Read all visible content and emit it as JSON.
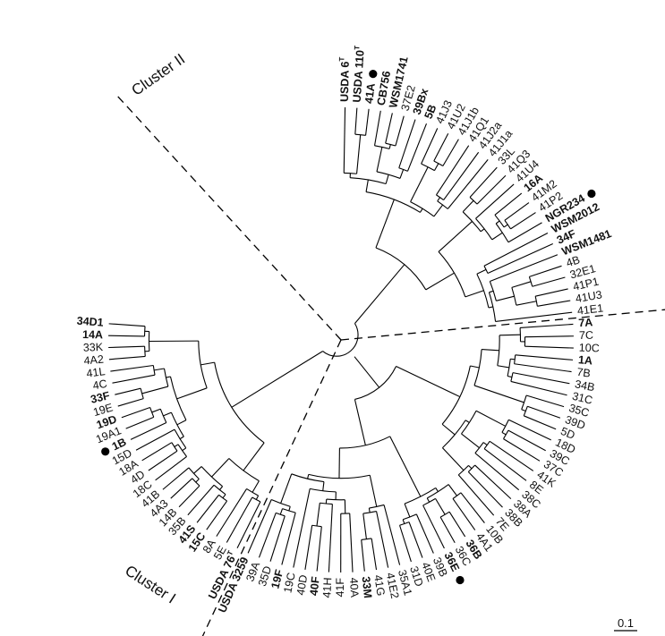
{
  "clusters": [
    {
      "id": "I",
      "label": "Cluster I"
    },
    {
      "id": "II",
      "label": "Cluster II"
    }
  ],
  "scale_bar": {
    "label": "0.1",
    "length": 0.1
  },
  "leaves": [
    {
      "name": "USDA 6",
      "sup": "T",
      "bold": true
    },
    {
      "name": "USDA 110",
      "sup": "T",
      "bold": true
    },
    {
      "name": "41A",
      "bold": true,
      "marker": true
    },
    {
      "name": "CB756",
      "bold": true
    },
    {
      "name": "WSM1741",
      "bold": true
    },
    {
      "name": "37E2"
    },
    {
      "name": "39Bx",
      "bold": true
    },
    {
      "name": "5B",
      "bold": true
    },
    {
      "name": "41J3"
    },
    {
      "name": "41U2"
    },
    {
      "name": "41J1b"
    },
    {
      "name": "41Q1"
    },
    {
      "name": "41J2a"
    },
    {
      "name": "41J1a"
    },
    {
      "name": "33L"
    },
    {
      "name": "41Q3"
    },
    {
      "name": "41U4"
    },
    {
      "name": "16A",
      "bold": true
    },
    {
      "name": "41M2"
    },
    {
      "name": "41P2"
    },
    {
      "name": "NGR234",
      "bold": true,
      "marker": true
    },
    {
      "name": "WSM2012",
      "bold": true
    },
    {
      "name": "34F",
      "bold": true
    },
    {
      "name": "WSM1481",
      "bold": true
    },
    {
      "name": "4B"
    },
    {
      "name": "32E1"
    },
    {
      "name": "41P1"
    },
    {
      "name": "41U3"
    },
    {
      "name": "41E1"
    },
    {
      "name": "7A",
      "bold": true
    },
    {
      "name": "7C"
    },
    {
      "name": "10C"
    },
    {
      "name": "1A",
      "bold": true
    },
    {
      "name": "7B"
    },
    {
      "name": "34B"
    },
    {
      "name": "31C"
    },
    {
      "name": "35C"
    },
    {
      "name": "39D"
    },
    {
      "name": "5D"
    },
    {
      "name": "18D"
    },
    {
      "name": "39C"
    },
    {
      "name": "37C"
    },
    {
      "name": "41K"
    },
    {
      "name": "8E"
    },
    {
      "name": "38C"
    },
    {
      "name": "38A"
    },
    {
      "name": "38B"
    },
    {
      "name": "7E"
    },
    {
      "name": "10B"
    },
    {
      "name": "4A1"
    },
    {
      "name": "36B",
      "bold": true
    },
    {
      "name": "36C"
    },
    {
      "name": "36E",
      "bold": true,
      "marker": true
    },
    {
      "name": "39B"
    },
    {
      "name": "40E"
    },
    {
      "name": "31D"
    },
    {
      "name": "35A1"
    },
    {
      "name": "41E2"
    },
    {
      "name": "41G"
    },
    {
      "name": "33M",
      "bold": true
    },
    {
      "name": "40A"
    },
    {
      "name": "41F"
    },
    {
      "name": "41H"
    },
    {
      "name": "40F",
      "bold": true
    },
    {
      "name": "40D"
    },
    {
      "name": "19C"
    },
    {
      "name": "19F",
      "bold": true
    },
    {
      "name": "35D"
    },
    {
      "name": "39A"
    },
    {
      "name": "USDA 3259",
      "bold": true
    },
    {
      "name": "USDA 76",
      "sup": "T",
      "bold": true
    },
    {
      "name": "5E"
    },
    {
      "name": "8A"
    },
    {
      "name": "15C",
      "bold": true
    },
    {
      "name": "41S",
      "bold": true
    },
    {
      "name": "35B"
    },
    {
      "name": "14B"
    },
    {
      "name": "4A3"
    },
    {
      "name": "41B"
    },
    {
      "name": "18C"
    },
    {
      "name": "4D"
    },
    {
      "name": "18A"
    },
    {
      "name": "15D"
    },
    {
      "name": "1B",
      "bold": true,
      "marker": true
    },
    {
      "name": "19A1"
    },
    {
      "name": "19D",
      "bold": true
    },
    {
      "name": "19E"
    },
    {
      "name": "33F",
      "bold": true
    },
    {
      "name": "4C"
    },
    {
      "name": "41L"
    },
    {
      "name": "4A2"
    },
    {
      "name": "33K"
    },
    {
      "name": "14A",
      "bold": true
    },
    {
      "name": "34D1",
      "bold": true
    }
  ]
}
